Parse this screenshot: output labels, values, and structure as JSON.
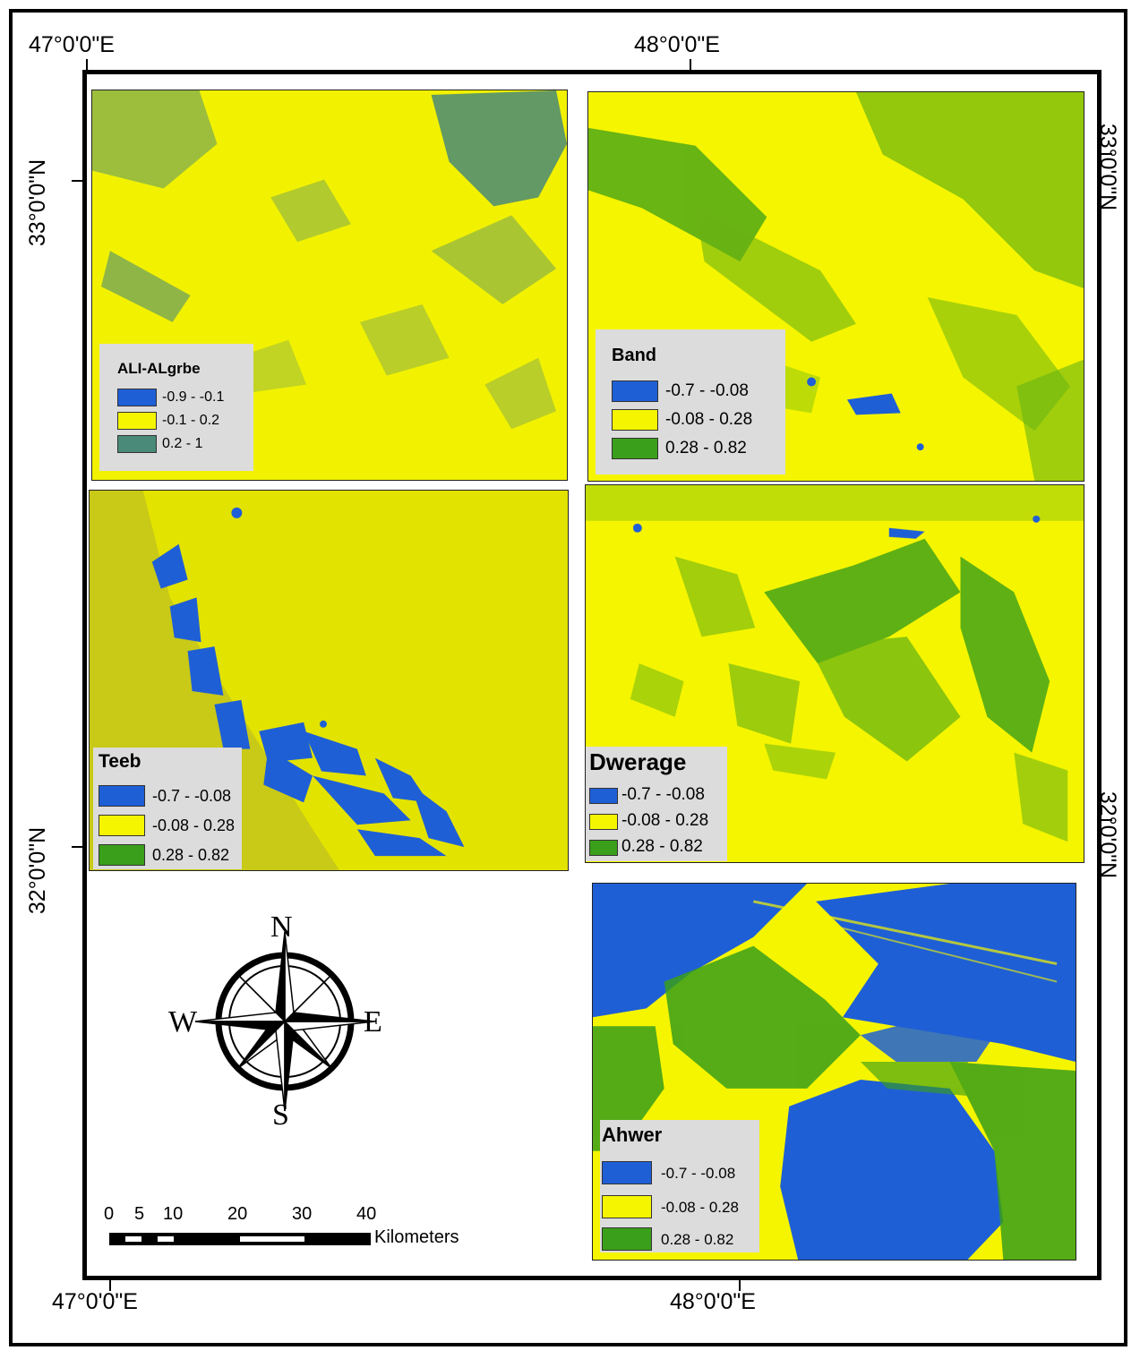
{
  "graticule": {
    "top_left_lon": "47°0'0\"E",
    "top_right_lon": "48°0'0\"E",
    "bottom_left_lon": "47°0'0\"E",
    "bottom_right_lon": "48°0'0\"E",
    "left_top_lat": "33°0'0\"N",
    "left_bottom_lat": "32°0'0\"N",
    "right_top_lat": "33°0'0\"N",
    "right_bottom_lat": "32°0'0\"N"
  },
  "panels": {
    "ali_algrbe": {
      "title": "ALI-ALgrbe",
      "classes": [
        {
          "label": "-0.9 - -0.1",
          "color": "#1f5fd6"
        },
        {
          "label": "-0.1 - 0.2",
          "color": "#f5f500"
        },
        {
          "label": "0.2 - 1",
          "color": "#4a8a78"
        }
      ]
    },
    "band": {
      "title": "Band",
      "classes": [
        {
          "label": "-0.7 - -0.08",
          "color": "#1f5fd6"
        },
        {
          "label": "-0.08 - 0.28",
          "color": "#f5f500"
        },
        {
          "label": "0.28 - 0.82",
          "color": "#3a9f1a"
        }
      ]
    },
    "teeb": {
      "title": "Teeb",
      "classes": [
        {
          "label": "-0.7 - -0.08",
          "color": "#1f5fd6"
        },
        {
          "label": "-0.08 - 0.28",
          "color": "#f5f500"
        },
        {
          "label": "0.28 - 0.82",
          "color": "#3a9f1a"
        }
      ]
    },
    "dwerage": {
      "title": "Dwerage",
      "classes": [
        {
          "label": "-0.7 - -0.08",
          "color": "#1f5fd6"
        },
        {
          "label": "-0.08 - 0.28",
          "color": "#f5f500"
        },
        {
          "label": "0.28 - 0.82",
          "color": "#3a9f1a"
        }
      ]
    },
    "ahwer": {
      "title": "Ahwer",
      "classes": [
        {
          "label": "-0.7 - -0.08",
          "color": "#1f5fd6"
        },
        {
          "label": "-0.08 - 0.28",
          "color": "#f5f500"
        },
        {
          "label": "0.28 - 0.82",
          "color": "#3a9f1a"
        }
      ]
    }
  },
  "compass": {
    "n": "N",
    "s": "S",
    "e": "E",
    "w": "W"
  },
  "scale_bar": {
    "ticks": [
      "0",
      "5",
      "10",
      "20",
      "30",
      "40"
    ],
    "unit": "Kilometers"
  }
}
